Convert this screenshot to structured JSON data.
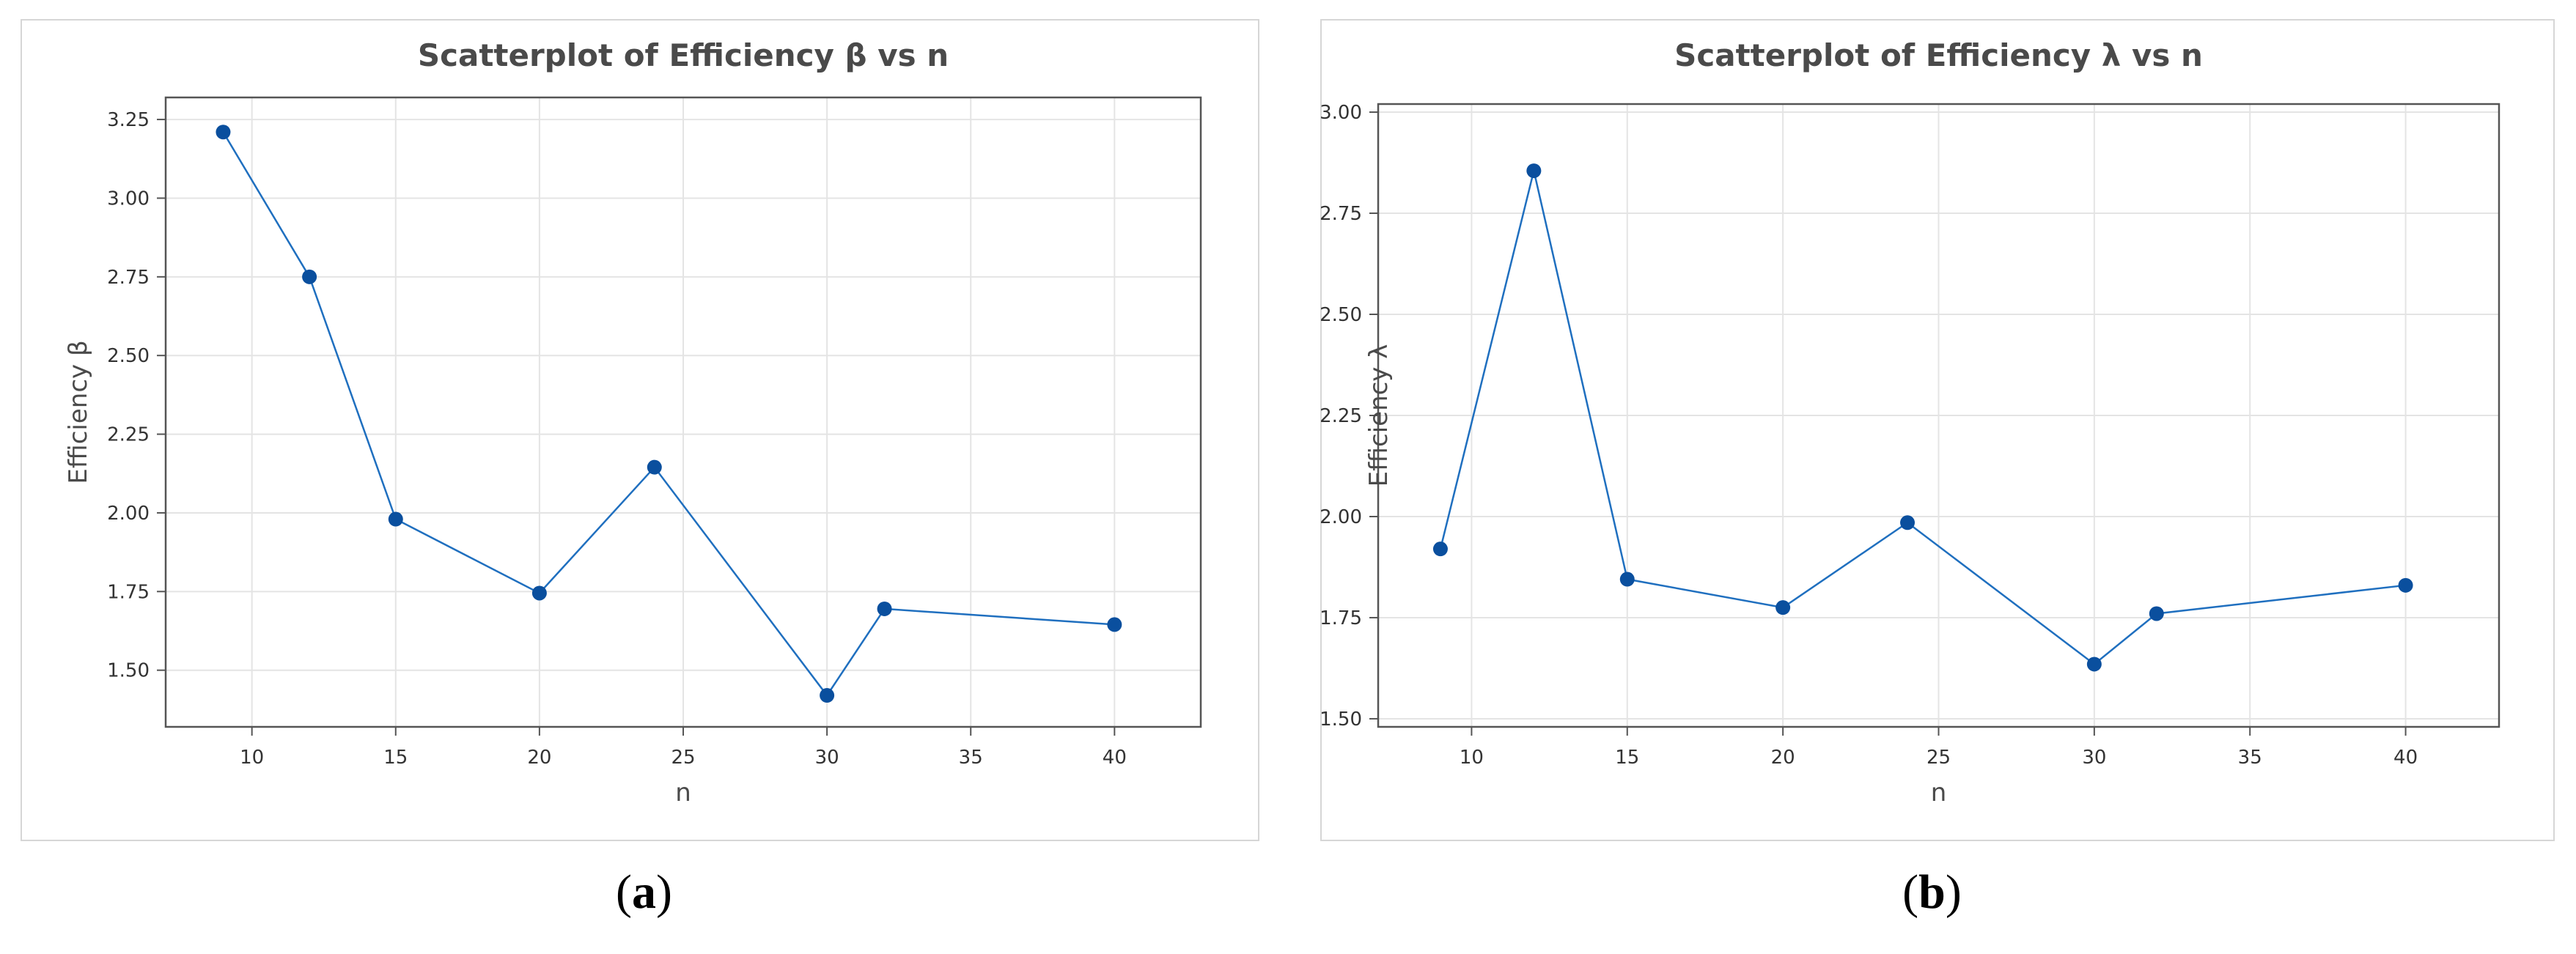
{
  "figure": {
    "captions": [
      "a",
      "b"
    ]
  },
  "chart_data": [
    {
      "type": "line",
      "title": "Scatterplot of Efficiency β vs n",
      "xlabel": "n",
      "ylabel": "Efficiency β",
      "xlim": [
        7,
        43
      ],
      "ylim": [
        1.32,
        3.32
      ],
      "xticks": [
        10,
        15,
        20,
        25,
        30,
        35,
        40
      ],
      "xtick_labels": [
        "10",
        "15",
        "20",
        "25",
        "30",
        "35",
        "40"
      ],
      "yticks": [
        1.5,
        1.75,
        2.0,
        2.25,
        2.5,
        2.75,
        3.0,
        3.25
      ],
      "ytick_labels": [
        "1.50",
        "1.75",
        "2.00",
        "2.25",
        "2.50",
        "2.75",
        "3.00",
        "3.25"
      ],
      "grid": true,
      "markers": true,
      "series": [
        {
          "x": [
            9,
            12,
            15,
            20,
            24,
            30,
            32,
            40
          ],
          "y": [
            3.21,
            2.75,
            1.98,
            1.745,
            2.145,
            1.42,
            1.695,
            1.645
          ]
        }
      ],
      "colors": {
        "line": "#1f6fbf",
        "marker": "#0a4f9e",
        "grid": "#e4e4e4",
        "axis": "#555555"
      }
    },
    {
      "type": "line",
      "title": "Scatterplot of Efficiency λ vs n",
      "xlabel": "n",
      "ylabel": "Efficiency λ",
      "xlim": [
        7,
        43
      ],
      "ylim": [
        1.48,
        3.02
      ],
      "xticks": [
        10,
        15,
        20,
        25,
        30,
        35,
        40
      ],
      "xtick_labels": [
        "10",
        "15",
        "20",
        "25",
        "30",
        "35",
        "40"
      ],
      "yticks": [
        1.5,
        1.75,
        2.0,
        2.25,
        2.5,
        2.75,
        3.0
      ],
      "ytick_labels": [
        "1.50",
        "1.75",
        "2.00",
        "2.25",
        "2.50",
        "2.75",
        "3.00"
      ],
      "grid": true,
      "markers": true,
      "series": [
        {
          "x": [
            9,
            12,
            15,
            20,
            24,
            30,
            32,
            40
          ],
          "y": [
            1.92,
            2.855,
            1.845,
            1.775,
            1.985,
            1.635,
            1.76,
            1.83
          ]
        }
      ],
      "colors": {
        "line": "#1f6fbf",
        "marker": "#0a4f9e",
        "grid": "#e4e4e4",
        "axis": "#555555"
      }
    }
  ]
}
